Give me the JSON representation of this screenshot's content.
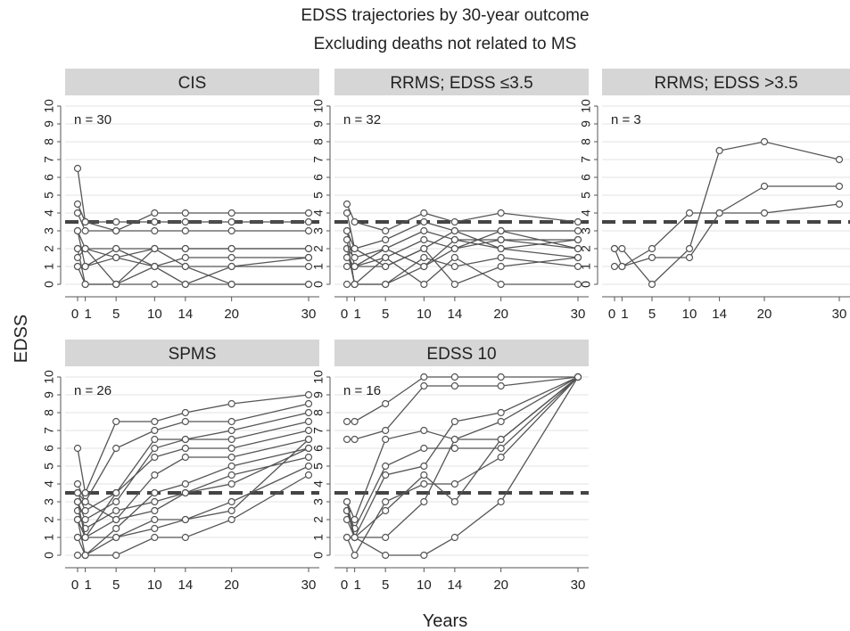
{
  "title": "EDSS trajectories by 30-year outcome",
  "subtitle": "Excluding deaths not related to MS",
  "ylabel": "EDSS",
  "xlabel": "Years",
  "x_ticks": [
    "0",
    "1",
    "5",
    "10",
    "14",
    "20",
    "30"
  ],
  "y_ticks": [
    "0",
    "1",
    "2",
    "3",
    "4",
    "5",
    "6",
    "7",
    "8",
    "9",
    "10"
  ],
  "colors": {
    "strip": "#d6d6d6",
    "line": "#555555",
    "ref": "#444444",
    "grid": "#e3e3e3"
  },
  "chart_data": {
    "type": "line",
    "x_values": [
      0,
      1,
      5,
      10,
      14,
      20,
      30
    ],
    "ylim": [
      0,
      10
    ],
    "reference_line": 3.5,
    "grid": true,
    "panels": [
      {
        "title": "CIS",
        "n_label": "n = 30",
        "series": [
          {
            "x": [
              0,
              1,
              5,
              10,
              14,
              20,
              30
            ],
            "y": [
              6.5,
              3.5,
              3,
              4,
              4,
              4,
              4
            ]
          },
          {
            "x": [
              0,
              1,
              5,
              10,
              14,
              20,
              30
            ],
            "y": [
              4.5,
              3.5,
              3.5,
              3.5,
              3.5,
              3.5,
              3.5
            ]
          },
          {
            "x": [
              0,
              1,
              5,
              10,
              14,
              20,
              30
            ],
            "y": [
              4,
              3,
              3,
              3,
              3,
              3,
              3
            ]
          },
          {
            "x": [
              0,
              1,
              5,
              10,
              14,
              20,
              30
            ],
            "y": [
              3,
              2,
              2,
              2,
              2,
              2,
              2
            ]
          },
          {
            "x": [
              0,
              1,
              5,
              10,
              14,
              20,
              30
            ],
            "y": [
              2,
              2,
              1.5,
              2,
              2,
              2,
              2
            ]
          },
          {
            "x": [
              0,
              1,
              5,
              10,
              14,
              20,
              30
            ],
            "y": [
              1,
              1,
              1.5,
              1,
              1.5,
              1.5,
              1.5
            ]
          },
          {
            "x": [
              0,
              1,
              5,
              10,
              14,
              20,
              30
            ],
            "y": [
              1,
              0,
              0,
              1,
              0,
              1,
              1
            ]
          },
          {
            "x": [
              0,
              1,
              5,
              10,
              14,
              20,
              30
            ],
            "y": [
              2,
              0,
              0,
              0,
              0,
              0,
              0
            ]
          },
          {
            "x": [
              0,
              1,
              5,
              10,
              14,
              20,
              30
            ],
            "y": [
              1.5,
              2,
              0,
              2,
              1,
              1,
              1.5
            ]
          },
          {
            "x": [
              0,
              1,
              5,
              10,
              14,
              20,
              30
            ],
            "y": [
              3,
              1,
              2,
              1,
              1,
              0,
              0
            ]
          }
        ]
      },
      {
        "title": "RRMS; EDSS ≤3.5",
        "n_label": "n =  32",
        "series": [
          {
            "x": [
              0,
              1,
              5,
              10,
              14,
              20,
              30
            ],
            "y": [
              4.5,
              3.5,
              3,
              4,
              3.5,
              4,
              3.5
            ]
          },
          {
            "x": [
              0,
              1,
              5,
              10,
              14,
              20,
              30
            ],
            "y": [
              4,
              2,
              2.5,
              3.5,
              3,
              3,
              3
            ]
          },
          {
            "x": [
              0,
              1,
              5,
              10,
              14,
              20,
              30
            ],
            "y": [
              3,
              1,
              2,
              3,
              2.5,
              2.5,
              2.5
            ]
          },
          {
            "x": [
              0,
              1,
              5,
              10,
              14,
              20,
              30
            ],
            "y": [
              2,
              0,
              1.5,
              2.5,
              2,
              2.5,
              2
            ]
          },
          {
            "x": [
              0,
              1,
              5,
              10,
              14,
              20,
              30
            ],
            "y": [
              1,
              1,
              1,
              2,
              3,
              2,
              1.5
            ]
          },
          {
            "x": [
              0,
              1,
              5,
              10,
              14,
              20,
              30
            ],
            "y": [
              0,
              0,
              0,
              1.5,
              1,
              1.5,
              1
            ]
          },
          {
            "x": [
              0,
              1,
              5,
              10,
              14,
              20,
              30
            ],
            "y": [
              2,
              1.5,
              2,
              1,
              2,
              3,
              2
            ]
          },
          {
            "x": [
              0,
              1,
              5,
              10,
              14,
              20,
              30
            ],
            "y": [
              1.5,
              1,
              1.5,
              0,
              1.5,
              0,
              0
            ]
          },
          {
            "x": [
              0,
              1,
              5,
              10,
              14,
              20,
              30
            ],
            "y": [
              3,
              2,
              1,
              2,
              0,
              1,
              1.5
            ]
          },
          {
            "x": [
              0,
              1,
              5,
              10,
              14,
              20,
              30
            ],
            "y": [
              2.5,
              0,
              0,
              1,
              2.5,
              2,
              2.5
            ]
          }
        ]
      },
      {
        "title": "RRMS; EDSS >3.5",
        "n_label": "n =  3",
        "series": [
          {
            "x": [
              0,
              1,
              5,
              10,
              14,
              20,
              30
            ],
            "y": [
              2,
              2,
              0,
              2,
              7.5,
              8,
              7
            ]
          },
          {
            "x": [
              0,
              1,
              5,
              10,
              14,
              20,
              30
            ],
            "y": [
              1,
              1,
              2,
              4,
              4,
              4,
              4.5
            ]
          },
          {
            "x": [
              0,
              1,
              5,
              10,
              14,
              20,
              30
            ],
            "y": [
              2,
              1,
              1.5,
              1.5,
              4,
              5.5,
              5.5
            ]
          }
        ]
      },
      {
        "title": "SPMS",
        "n_label": "n = 26",
        "series": [
          {
            "x": [
              0,
              1,
              5,
              10,
              14,
              20,
              30
            ],
            "y": [
              6,
              3.5,
              7.5,
              7.5,
              8,
              8.5,
              9
            ]
          },
          {
            "x": [
              0,
              1,
              5,
              10,
              14,
              20,
              30
            ],
            "y": [
              4,
              3,
              6,
              7,
              7.5,
              7.5,
              8.5
            ]
          },
          {
            "x": [
              0,
              1,
              5,
              10,
              14,
              20,
              30
            ],
            "y": [
              3.5,
              2.5,
              3.5,
              6.5,
              6.5,
              7,
              8
            ]
          },
          {
            "x": [
              0,
              1,
              5,
              10,
              14,
              20,
              30
            ],
            "y": [
              3,
              2,
              3,
              6,
              6.5,
              6.5,
              7.5
            ]
          },
          {
            "x": [
              0,
              1,
              5,
              10,
              14,
              20,
              30
            ],
            "y": [
              2,
              1,
              3.5,
              5.5,
              6,
              6,
              7
            ]
          },
          {
            "x": [
              0,
              1,
              5,
              10,
              14,
              20,
              30
            ],
            "y": [
              1,
              1,
              2,
              4.5,
              5.5,
              5.5,
              6.5
            ]
          },
          {
            "x": [
              0,
              1,
              5,
              10,
              14,
              20,
              30
            ],
            "y": [
              0,
              0,
              1.5,
              3.5,
              4,
              5,
              6
            ]
          },
          {
            "x": [
              0,
              1,
              5,
              10,
              14,
              20,
              30
            ],
            "y": [
              2.5,
              1.5,
              2.5,
              3,
              3.5,
              4.5,
              5.5
            ]
          },
          {
            "x": [
              0,
              1,
              5,
              10,
              14,
              20,
              30
            ],
            "y": [
              3,
              1,
              1,
              2,
              2,
              3,
              5
            ]
          },
          {
            "x": [
              0,
              1,
              5,
              10,
              14,
              20,
              30
            ],
            "y": [
              2,
              0,
              0,
              1,
              1,
              2,
              4.5
            ]
          },
          {
            "x": [
              0,
              1,
              5,
              10,
              14,
              20,
              30
            ],
            "y": [
              3.5,
              3,
              2,
              2.5,
              3.5,
              4,
              6
            ]
          },
          {
            "x": [
              0,
              1,
              5,
              10,
              14,
              20,
              30
            ],
            "y": [
              1,
              0,
              1,
              1.5,
              2,
              2.5,
              6.5
            ]
          }
        ]
      },
      {
        "title": "EDSS 10",
        "n_label": "n = 16",
        "series": [
          {
            "x": [
              0,
              1,
              5,
              10,
              14,
              20,
              30
            ],
            "y": [
              7.5,
              7.5,
              8.5,
              10,
              10,
              10,
              10
            ]
          },
          {
            "x": [
              0,
              1,
              5,
              10,
              14,
              20,
              30
            ],
            "y": [
              6.5,
              6.5,
              7,
              9.5,
              9.5,
              9.5,
              10
            ]
          },
          {
            "x": [
              0,
              1,
              5,
              10,
              14,
              20,
              30
            ],
            "y": [
              3,
              2,
              6.5,
              7,
              6.5,
              6.5,
              10
            ]
          },
          {
            "x": [
              0,
              1,
              5,
              10,
              14,
              20,
              30
            ],
            "y": [
              2.5,
              1.5,
              5,
              6,
              6,
              6,
              10
            ]
          },
          {
            "x": [
              0,
              1,
              5,
              10,
              14,
              20,
              30
            ],
            "y": [
              2,
              1,
              4.5,
              5,
              7.5,
              8,
              10
            ]
          },
          {
            "x": [
              0,
              1,
              5,
              10,
              14,
              20,
              30
            ],
            "y": [
              1,
              0,
              3,
              4,
              4,
              5.5,
              10
            ]
          },
          {
            "x": [
              0,
              1,
              5,
              10,
              14,
              20,
              30
            ],
            "y": [
              2.5,
              1,
              2.5,
              4.5,
              3,
              6.5,
              10
            ]
          },
          {
            "x": [
              0,
              1,
              5,
              10,
              14,
              20,
              30
            ],
            "y": [
              1,
              1,
              1,
              3,
              6.5,
              7.5,
              10
            ]
          },
          {
            "x": [
              0,
              1,
              5,
              10,
              14,
              20,
              30
            ],
            "y": [
              3,
              1,
              0,
              0,
              1,
              3,
              10
            ]
          }
        ]
      }
    ]
  }
}
